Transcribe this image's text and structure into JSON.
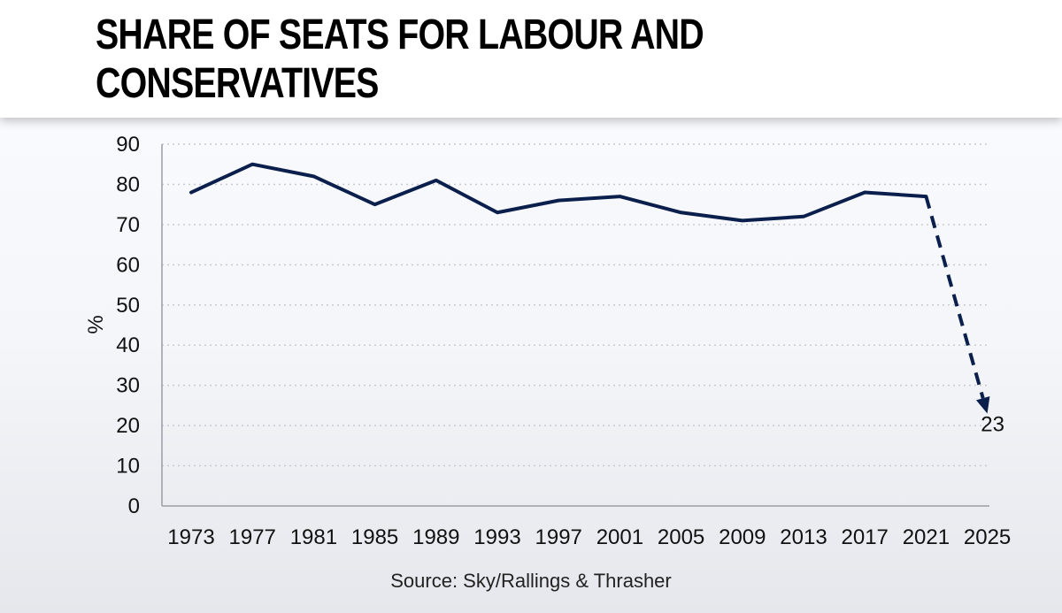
{
  "chart_data": {
    "type": "line",
    "title": "SHARE OF SEATS FOR LABOUR AND CONSERVATIVES",
    "xlabel": "",
    "ylabel": "%",
    "ylim": [
      0,
      90
    ],
    "yticks": [
      "0",
      "10",
      "20",
      "30",
      "40",
      "50",
      "60",
      "70",
      "80",
      "90"
    ],
    "categories": [
      "1973",
      "1977",
      "1981",
      "1985",
      "1989",
      "1993",
      "1997",
      "2001",
      "2005",
      "2009",
      "2013",
      "2017",
      "2021",
      "2025"
    ],
    "series": [
      {
        "name": "Share of seats",
        "values": [
          78,
          85,
          82,
          75,
          81,
          73,
          76,
          77,
          73,
          71,
          72,
          78,
          77,
          null
        ],
        "color": "#0b1f4d"
      },
      {
        "name": "Projection",
        "style": "dashed-arrow",
        "values": [
          null,
          null,
          null,
          null,
          null,
          null,
          null,
          null,
          null,
          null,
          null,
          null,
          77,
          23
        ],
        "color": "#0b1f4d"
      }
    ],
    "annotations": [
      {
        "category": "2025",
        "value": 23,
        "text": "23"
      }
    ],
    "grid": true,
    "source": "Source: Sky/Rallings & Thrasher"
  }
}
